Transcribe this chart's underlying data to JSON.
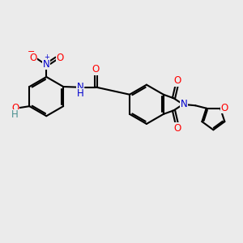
{
  "bg_color": "#ebebeb",
  "bond_color": "#000000",
  "bond_width": 1.5,
  "atom_colors": {
    "O": "#ff0000",
    "N": "#0000cd",
    "H_teal": "#4a9090",
    "C": "#000000"
  }
}
